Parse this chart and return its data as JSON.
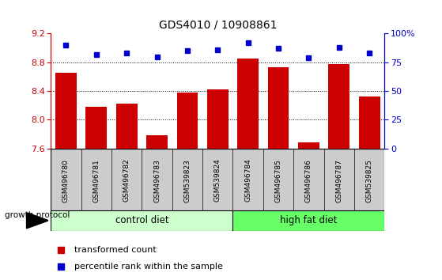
{
  "title": "GDS4010 / 10908861",
  "samples": [
    "GSM496780",
    "GSM496781",
    "GSM496782",
    "GSM496783",
    "GSM539823",
    "GSM539824",
    "GSM496784",
    "GSM496785",
    "GSM496786",
    "GSM496787",
    "GSM539825"
  ],
  "transformed_count": [
    8.65,
    8.18,
    8.22,
    7.78,
    8.38,
    8.42,
    8.85,
    8.73,
    7.68,
    8.77,
    8.32
  ],
  "percentile_rank": [
    90,
    82,
    83,
    80,
    85,
    86,
    92,
    87,
    79,
    88,
    83
  ],
  "ylim_left": [
    7.6,
    9.2
  ],
  "ylim_right": [
    0,
    100
  ],
  "yticks_left": [
    7.6,
    8.0,
    8.4,
    8.8,
    9.2
  ],
  "yticks_right": [
    0,
    25,
    50,
    75,
    100
  ],
  "ytick_labels_right": [
    "0",
    "25",
    "50",
    "75",
    "100%"
  ],
  "bar_color": "#cc0000",
  "dot_color": "#0000cc",
  "n_control": 6,
  "n_high_fat": 5,
  "control_diet_label": "control diet",
  "high_fat_diet_label": "high fat diet",
  "growth_protocol_label": "growth protocol",
  "legend_bar_label": "transformed count",
  "legend_dot_label": "percentile rank within the sample",
  "control_diet_color": "#ccffcc",
  "high_fat_diet_color": "#66ff66",
  "left_tick_color": "#cc0000",
  "right_tick_color": "#0000cc",
  "tick_area_color": "#cccccc",
  "grid_yticks": [
    8.0,
    8.4,
    8.8
  ],
  "bar_bottom": 7.6
}
